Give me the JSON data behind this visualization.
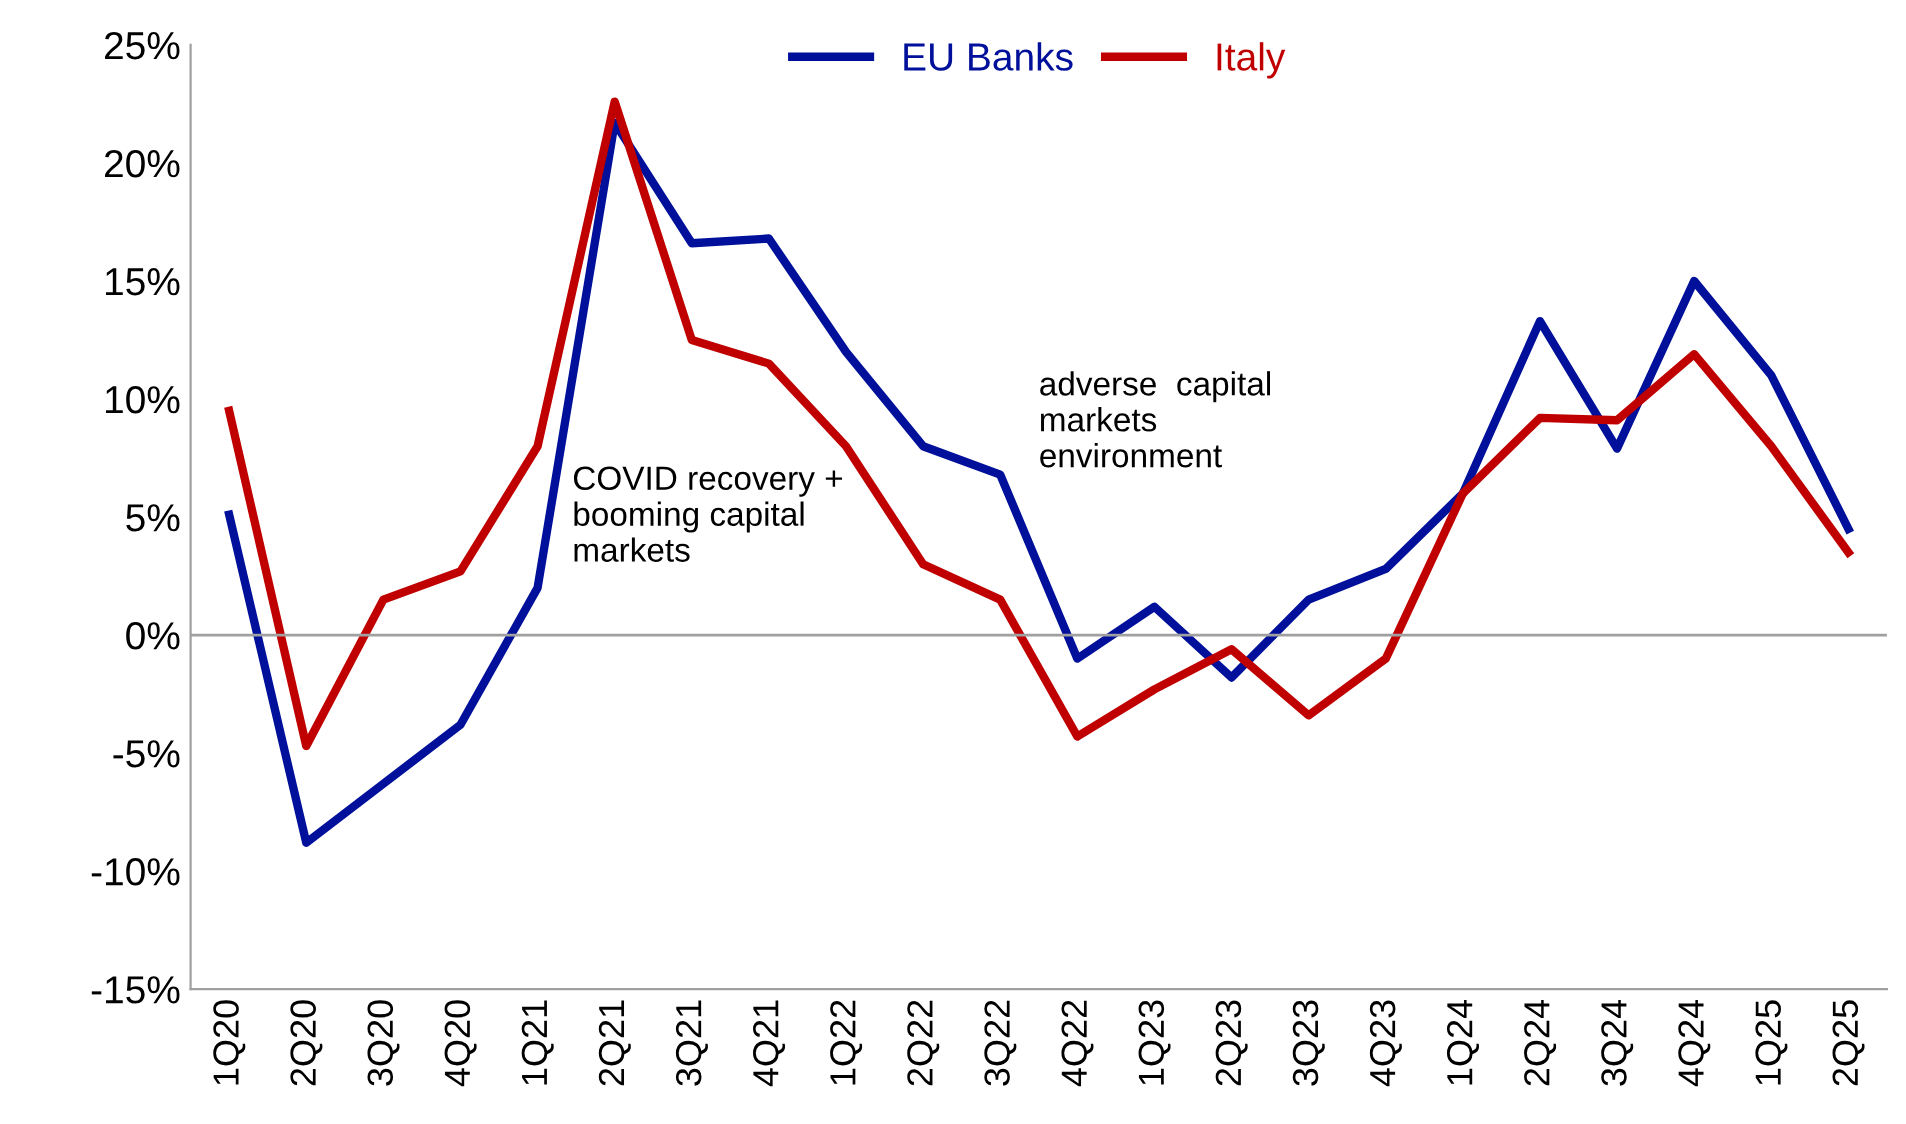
{
  "chart_data": {
    "type": "line",
    "categories": [
      "1Q20",
      "2Q20",
      "3Q20",
      "4Q20",
      "1Q21",
      "2Q21",
      "3Q21",
      "4Q21",
      "1Q22",
      "2Q22",
      "3Q22",
      "4Q22",
      "1Q23",
      "2Q23",
      "3Q23",
      "4Q23",
      "1Q24",
      "2Q24",
      "3Q24",
      "4Q24",
      "1Q25",
      "2Q25"
    ],
    "series": [
      {
        "name": "EU Banks",
        "color": "#00109a",
        "values": [
          5.1,
          -8.8,
          -6.3,
          -3.8,
          2,
          21.7,
          16.6,
          16.8,
          12,
          8,
          6.8,
          -1,
          1.2,
          -1.8,
          1.5,
          2.8,
          6,
          13.3,
          7.9,
          15,
          11,
          4.5
        ]
      },
      {
        "name": "Italy",
        "color": "#c00000",
        "values": [
          9.5,
          -4.7,
          1.5,
          2.7,
          8,
          22.6,
          12.5,
          11.5,
          8,
          3,
          1.5,
          -4.3,
          -2.3,
          -0.6,
          -3.4,
          -1,
          6,
          9.2,
          9.1,
          11.9,
          8,
          3.5
        ]
      }
    ],
    "ylim": [
      -15,
      25
    ],
    "yticks": [
      {
        "value": -15,
        "label": "-15%"
      },
      {
        "value": -10,
        "label": "-10%"
      },
      {
        "value": -5,
        "label": "-5%"
      },
      {
        "value": 0,
        "label": "0%"
      },
      {
        "value": 5,
        "label": "5%"
      },
      {
        "value": 10,
        "label": "10%"
      },
      {
        "value": 15,
        "label": "15%"
      },
      {
        "value": 20,
        "label": "20%"
      },
      {
        "value": 25,
        "label": "25%"
      }
    ],
    "annotations": [
      "COVID recovery +\nbooming capital\nmarkets",
      "adverse  capital\nmarkets\nenvironment"
    ],
    "ref_lines": [
      {
        "axis": "y",
        "value": 0,
        "color": "#a0a0a0"
      }
    ],
    "legend": "top",
    "grid": false,
    "marker": "none",
    "line_style": "solid"
  }
}
